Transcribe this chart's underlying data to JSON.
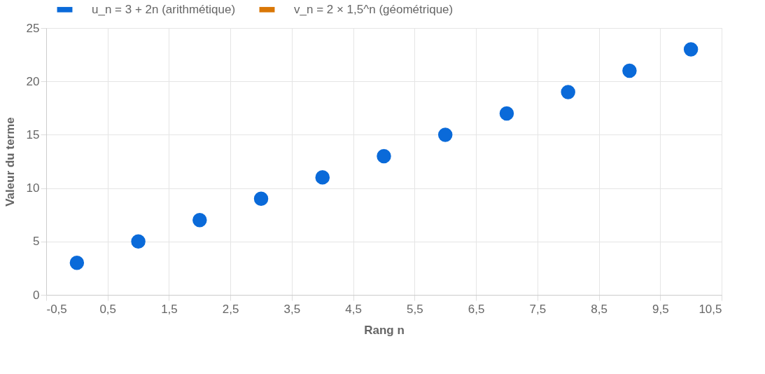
{
  "chart_data": {
    "type": "scatter",
    "xlabel": "Rang n",
    "ylabel": "Valeur du terme",
    "x": [
      0,
      1,
      2,
      3,
      4,
      5,
      6,
      7,
      8,
      9,
      10
    ],
    "series": [
      {
        "name": "u_n = 3 + 2n (arithmétique)",
        "color": "#0a6ad9",
        "values": [
          3,
          5,
          7,
          9,
          11,
          13,
          15,
          17,
          19,
          21,
          23
        ]
      },
      {
        "name": "v_n = 2 × 1,5^n (géométrique)",
        "color": "#d97706",
        "values": [
          null,
          null,
          null,
          null,
          null,
          null,
          null,
          null,
          null,
          null,
          null
        ]
      }
    ],
    "xlim": [
      -0.5,
      10.5
    ],
    "xticks": [
      {
        "value": -0.5,
        "label": "-0,5"
      },
      {
        "value": 0.5,
        "label": "0,5"
      },
      {
        "value": 1.5,
        "label": "1,5"
      },
      {
        "value": 2.5,
        "label": "2,5"
      },
      {
        "value": 3.5,
        "label": "3,5"
      },
      {
        "value": 4.5,
        "label": "4,5"
      },
      {
        "value": 5.5,
        "label": "5,5"
      },
      {
        "value": 6.5,
        "label": "6,5"
      },
      {
        "value": 7.5,
        "label": "7,5"
      },
      {
        "value": 8.5,
        "label": "8,5"
      },
      {
        "value": 9.5,
        "label": "9,5"
      },
      {
        "value": 10.5,
        "label": "10,5"
      }
    ],
    "ylim": [
      0,
      25
    ],
    "yticks": [
      0,
      5,
      10,
      15,
      20,
      25
    ],
    "grid": true,
    "legend": "top",
    "marker": "circle"
  }
}
